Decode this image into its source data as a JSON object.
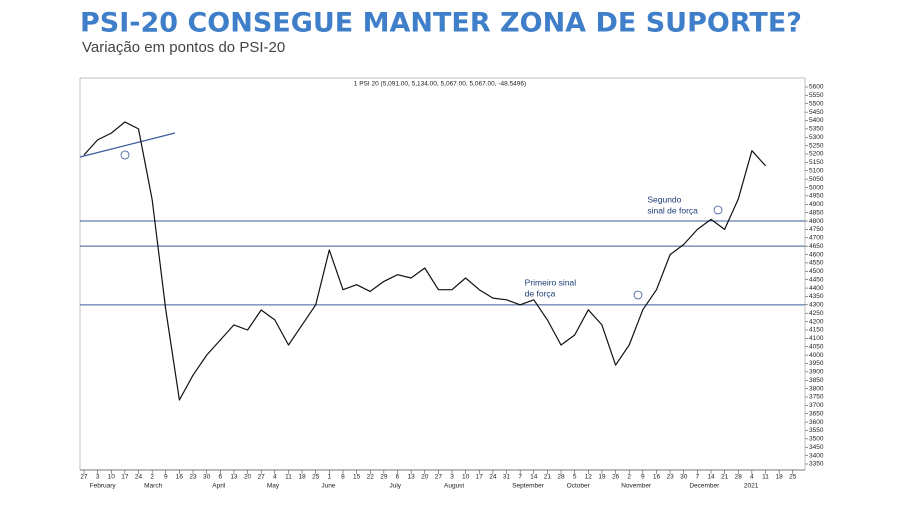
{
  "chart_data": {
    "type": "line",
    "title": "PSI-20 CONSEGUE MANTER ZONA DE SUPORTE?",
    "subtitle": "Variação em pontos do PSI-20",
    "header": "1 PSI 20 (5,091.00, 5,134.00, 5,067.00, 5,067.00, -48.5496)",
    "categories": [
      "27",
      "3",
      "10",
      "17",
      "24",
      "2",
      "9",
      "16",
      "23",
      "30",
      "6",
      "13",
      "20",
      "27",
      "4",
      "11",
      "18",
      "25",
      "1",
      "8",
      "15",
      "22",
      "29",
      "6",
      "13",
      "20",
      "27",
      "3",
      "10",
      "17",
      "24",
      "31",
      "7",
      "14",
      "21",
      "28",
      "5",
      "12",
      "19",
      "26",
      "2",
      "9",
      "16",
      "23",
      "30",
      "7",
      "14",
      "21",
      "28",
      "4",
      "11",
      "18",
      "25"
    ],
    "month_labels": [
      null,
      "February",
      null,
      null,
      null,
      "March",
      null,
      null,
      null,
      null,
      "April",
      null,
      null,
      null,
      "May",
      null,
      null,
      null,
      "June",
      null,
      null,
      null,
      null,
      "July",
      null,
      null,
      null,
      "August",
      null,
      null,
      null,
      null,
      "September",
      null,
      null,
      null,
      "October",
      null,
      null,
      null,
      "November",
      null,
      null,
      null,
      null,
      "December",
      null,
      null,
      null,
      "2021",
      null,
      null,
      null
    ],
    "series": [
      {
        "name": "PSI 20",
        "color": "#111111",
        "values": [
          5194,
          5284,
          5325,
          5391,
          5350,
          4926,
          4269,
          3732,
          3880,
          4000,
          4090,
          4180,
          4150,
          4269,
          4210,
          4060,
          4180,
          4300,
          4627,
          4390,
          4420,
          4380,
          4440,
          4480,
          4460,
          4520,
          4390,
          4390,
          4460,
          4390,
          4340,
          4330,
          4300,
          4330,
          4210,
          4060,
          4120,
          4270,
          4180,
          3940,
          4060,
          4270,
          4390,
          4600,
          4660,
          4750,
          4810,
          4750,
          4930,
          5220,
          5130,
          null,
          null
        ]
      }
    ],
    "hlines": [
      4800,
      4650,
      4300
    ],
    "hline_color": "#3a5a9a",
    "annotations": [
      {
        "lines": [
          "Segundo",
          "sinal de força"
        ],
        "at": 45
      },
      {
        "lines": [
          "Primeiro sinal",
          "de força"
        ],
        "at": 36
      }
    ],
    "ylim": [
      3350,
      5600
    ],
    "yticks": [
      3350,
      3400,
      3450,
      3500,
      3550,
      3600,
      3650,
      3700,
      3750,
      3800,
      3850,
      3900,
      3950,
      4000,
      4050,
      4100,
      4150,
      4200,
      4250,
      4300,
      4350,
      4400,
      4450,
      4500,
      4550,
      4600,
      4650,
      4700,
      4750,
      4800,
      4850,
      4900,
      4950,
      5000,
      5050,
      5100,
      5150,
      5200,
      5250,
      5300,
      5350,
      5400,
      5450,
      5500,
      5550,
      5600
    ]
  }
}
